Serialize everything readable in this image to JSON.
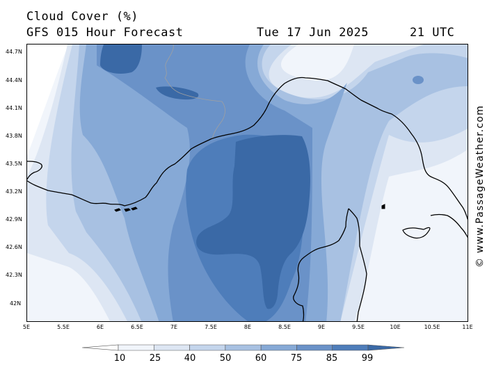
{
  "header": {
    "title": "Cloud Cover (%)",
    "subtitle": "GFS 015 Hour Forecast",
    "date": "Tue 17 Jun 2025",
    "time": "21 UTC"
  },
  "axes": {
    "lat_labels": [
      "44.7N",
      "44.4N",
      "44.1N",
      "43.8N",
      "43.5N",
      "43.2N",
      "42.9N",
      "42.6N",
      "42.3N",
      "42N"
    ],
    "lon_labels": [
      "5E",
      "5.5E",
      "6E",
      "6.5E",
      "7E",
      "7.5E",
      "8E",
      "8.5E",
      "9E",
      "9.5E",
      "10E",
      "10.5E",
      "11E"
    ]
  },
  "watermark": "© www.PassageWeather.com",
  "legend": {
    "ticks": [
      "10",
      "25",
      "40",
      "50",
      "60",
      "75",
      "85",
      "99"
    ],
    "colors": [
      "#ffffff",
      "#f1f5fb",
      "#dde6f3",
      "#c4d5ec",
      "#a8c1e2",
      "#86a9d6",
      "#6a92c8",
      "#4e7dba",
      "#3a69a6"
    ]
  },
  "map": {
    "coast_color": "#000000",
    "border_color": "#a0a0a0"
  }
}
